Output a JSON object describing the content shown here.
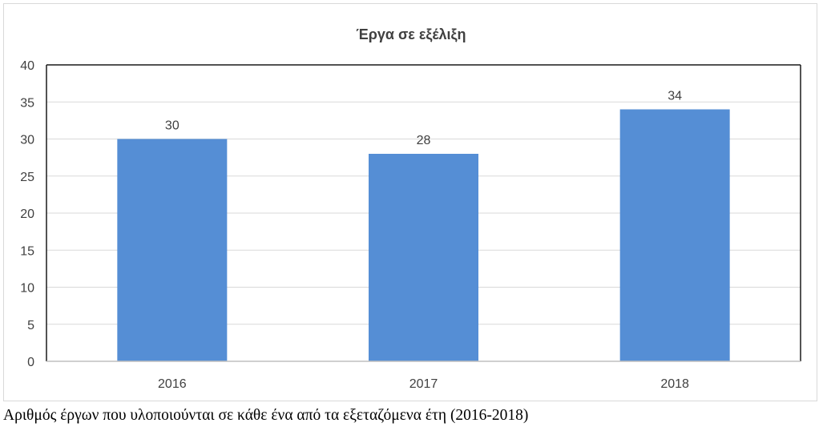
{
  "chart_data": {
    "type": "bar",
    "title": "Έργα σε εξέλιξη",
    "categories": [
      "2016",
      "2017",
      "2018"
    ],
    "values": [
      30,
      28,
      34
    ],
    "ylim": [
      0,
      40
    ],
    "yticks": [
      0,
      5,
      10,
      15,
      20,
      25,
      30,
      35,
      40
    ],
    "xlabel": "",
    "ylabel": "",
    "grid": true,
    "data_labels": true,
    "bar_color": "#558ed5",
    "grid_color": "#d9d9d9",
    "text_color": "#404040"
  },
  "caption": "Αριθμός έργων που υλοποιούνται σε κάθε ένα από τα εξεταζόμενα έτη (2016-2018)"
}
